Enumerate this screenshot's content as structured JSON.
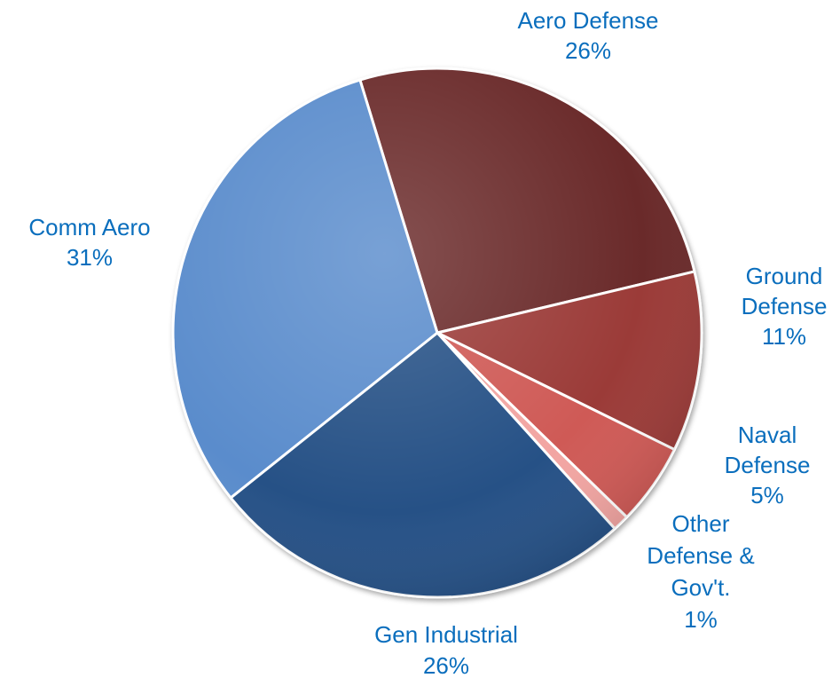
{
  "chart_data": {
    "type": "pie",
    "start_angle_deg": -107,
    "direction": "clockwise",
    "label_color": "#0a6ebd",
    "slices": [
      {
        "name": "Aero Defense",
        "value": 26,
        "label": "26%",
        "color": "#6b2a2a"
      },
      {
        "name": "Ground Defense",
        "value": 11,
        "label": "11%",
        "color": "#9b3b37"
      },
      {
        "name": "Naval Defense",
        "value": 5,
        "label": "5%",
        "color": "#cf5a56"
      },
      {
        "name": "Other Defense & Gov't.",
        "value": 1,
        "label": "1%",
        "color": "#f2a5a2"
      },
      {
        "name": "Gen Industrial",
        "value": 26,
        "label": "26%",
        "color": "#285186"
      },
      {
        "name": "Comm Aero",
        "value": 31,
        "label": "31%",
        "color": "#5a8ccc"
      }
    ]
  }
}
